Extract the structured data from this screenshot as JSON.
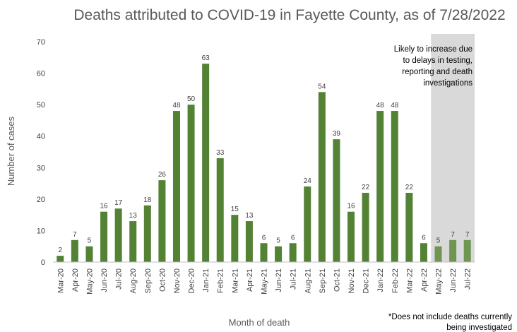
{
  "chart_data": {
    "type": "bar",
    "title": "Deaths attributed to COVID-19 in Fayette County, as of 7/28/2022",
    "xlabel": "Month of death",
    "ylabel": "Number of cases",
    "ylim": [
      0,
      70
    ],
    "yticks": [
      0,
      10,
      20,
      30,
      40,
      50,
      60,
      70
    ],
    "grid": false,
    "categories": [
      "Mar-20",
      "Apr-20",
      "May-20",
      "Jun-20",
      "Jul-20",
      "Aug-20",
      "Sep-20",
      "Oct-20",
      "Nov-20",
      "Dec-20",
      "Jan-21",
      "Feb-21",
      "Mar-21",
      "Apr-21",
      "May-21",
      "Jun-21",
      "Jul-21",
      "Aug-21",
      "Sep-21",
      "Oct-21",
      "Nov-21",
      "Dec-21",
      "Jan-22",
      "Feb-22",
      "Mar-22",
      "Apr-22",
      "May-22",
      "Jun-22",
      "Jul-22"
    ],
    "values": [
      2,
      7,
      5,
      16,
      17,
      13,
      18,
      26,
      48,
      50,
      63,
      33,
      15,
      13,
      6,
      5,
      6,
      24,
      54,
      39,
      16,
      22,
      48,
      48,
      22,
      6,
      5,
      7,
      7
    ],
    "bar_color": "#548235",
    "highlight": {
      "categories": [
        "May-22",
        "Jun-22",
        "Jul-22"
      ],
      "shade_color": "#d9d9d9",
      "bar_color": "#6e9650",
      "note_lines": [
        "Likely to increase due",
        "to delays in testing,",
        "reporting and death",
        "investigations"
      ]
    },
    "footnote_lines": [
      "*Does not include deaths currently",
      "being investigated"
    ]
  }
}
